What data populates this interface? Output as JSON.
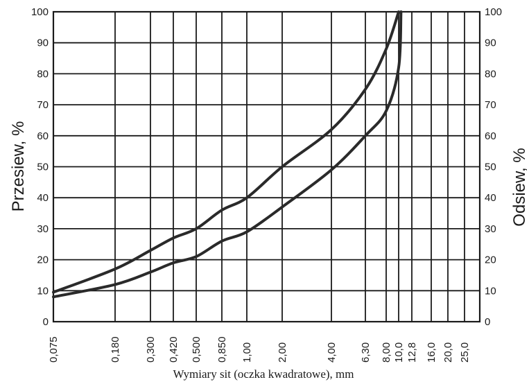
{
  "chart_data": {
    "type": "line",
    "title": "",
    "xlabel": "Wymiary sit (oczka kwadratowe), mm",
    "ylabel_left": "Przesiew, %",
    "ylabel_right": "Odsiew, %",
    "x_categories": [
      "0,075",
      "0,180",
      "0,300",
      "0,420",
      "0,500",
      "0,850",
      "1,00",
      "2,00",
      "4,00",
      "6,30",
      "8,00",
      "10,0",
      "12,8",
      "16,0",
      "20,0",
      "25,0"
    ],
    "x_values": [
      0.075,
      0.18,
      0.3,
      0.42,
      0.5,
      0.85,
      1.0,
      2.0,
      4.0,
      6.3,
      8.0,
      10.0,
      12.8,
      16.0,
      20.0,
      25.0
    ],
    "y_ticks_left": [
      "0",
      "10",
      "20",
      "30",
      "40",
      "50",
      "60",
      "70",
      "80",
      "90",
      "100"
    ],
    "y_ticks_right": [
      "0",
      "10",
      "20",
      "30",
      "40",
      "50",
      "60",
      "70",
      "80",
      "90",
      "100"
    ],
    "ylim": [
      0,
      100
    ],
    "grid": true,
    "series": [
      {
        "points": [
          [
            0.075,
            9.5
          ],
          [
            0.18,
            17
          ],
          [
            0.3,
            23
          ],
          [
            0.42,
            27
          ],
          [
            0.5,
            30
          ],
          [
            0.85,
            36
          ],
          [
            1.0,
            40
          ],
          [
            2.0,
            50
          ],
          [
            4.0,
            62
          ],
          [
            6.3,
            75
          ],
          [
            8.0,
            88
          ],
          [
            10.0,
            100
          ]
        ]
      },
      {
        "points": [
          [
            0.075,
            8
          ],
          [
            0.18,
            12
          ],
          [
            0.3,
            16
          ],
          [
            0.42,
            19
          ],
          [
            0.5,
            21
          ],
          [
            0.85,
            26
          ],
          [
            1.0,
            29
          ],
          [
            2.0,
            37
          ],
          [
            4.0,
            49
          ],
          [
            6.3,
            60
          ],
          [
            8.0,
            68
          ],
          [
            10.0,
            82
          ],
          [
            10.5,
            100
          ]
        ]
      }
    ]
  }
}
